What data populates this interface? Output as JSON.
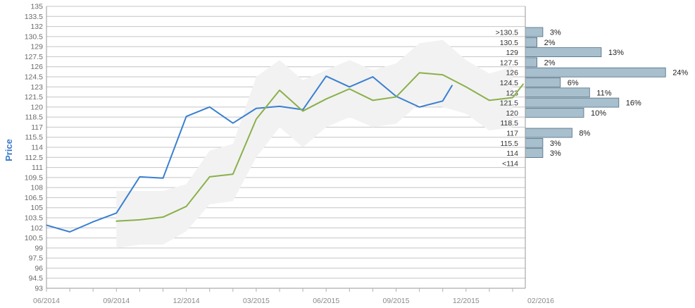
{
  "chart_data": {
    "type": "line",
    "ylabel": "Price",
    "ylim": [
      93,
      135
    ],
    "y_ticks": [
      "93",
      "94.5",
      "96",
      "97.5",
      "99",
      "100.5",
      "102",
      "103.5",
      "105",
      "106.5",
      "108",
      "109.5",
      "111",
      "112.5",
      "114",
      "115.5",
      "117",
      "118.5",
      "120",
      "121.5",
      "123",
      "124.5",
      "126",
      "127.5",
      "129",
      "130.5",
      "132",
      "133.5",
      "135"
    ],
    "x_ticks": [
      "06/2014",
      "09/2014",
      "12/2014",
      "03/2015",
      "06/2015",
      "09/2015",
      "12/2015",
      "02/2016"
    ],
    "series": [
      {
        "color": "#3a7fd0",
        "points": [
          [
            0,
            102.4
          ],
          [
            1,
            101.4
          ],
          [
            2,
            102.9
          ],
          [
            3,
            104.2
          ],
          [
            4,
            109.6
          ],
          [
            5,
            109.4
          ],
          [
            6,
            118.6
          ],
          [
            7,
            120.0
          ],
          [
            8,
            117.6
          ],
          [
            9,
            119.8
          ],
          [
            10,
            120.1
          ],
          [
            11,
            119.6
          ],
          [
            12,
            124.6
          ],
          [
            13,
            123.0
          ],
          [
            14,
            124.5
          ],
          [
            15,
            121.6
          ],
          [
            16,
            120.0
          ],
          [
            17,
            120.9
          ],
          [
            17.4,
            123.2
          ]
        ]
      },
      {
        "color": "#8ab04a",
        "points": [
          [
            3,
            103.0
          ],
          [
            4,
            103.2
          ],
          [
            5,
            103.6
          ],
          [
            6,
            105.2
          ],
          [
            7,
            109.6
          ],
          [
            8,
            110.0
          ],
          [
            9,
            118.2
          ],
          [
            10,
            122.5
          ],
          [
            11,
            119.4
          ],
          [
            12,
            121.2
          ],
          [
            13,
            122.7
          ],
          [
            14,
            121.0
          ],
          [
            15,
            121.5
          ],
          [
            16,
            125.1
          ],
          [
            17,
            124.8
          ],
          [
            18,
            123.0
          ],
          [
            19,
            121.0
          ],
          [
            20,
            121.4
          ],
          [
            20.45,
            123.4
          ]
        ]
      }
    ],
    "band": {
      "color": "#f2f2f2",
      "upper": [
        [
          3,
          107.5
        ],
        [
          4,
          107.5
        ],
        [
          5,
          107.5
        ],
        [
          6,
          108.5
        ],
        [
          7,
          113.5
        ],
        [
          8,
          114.5
        ],
        [
          9,
          124.5
        ],
        [
          10,
          127.0
        ],
        [
          11,
          124.0
        ],
        [
          12,
          125.5
        ],
        [
          13,
          127.0
        ],
        [
          14,
          125.5
        ],
        [
          15,
          126.5
        ],
        [
          16,
          129.5
        ],
        [
          17,
          130.0
        ],
        [
          18,
          127.0
        ],
        [
          19,
          125.0
        ],
        [
          20,
          126.0
        ]
      ],
      "lower": [
        [
          3,
          99.0
        ],
        [
          4,
          99.5
        ],
        [
          5,
          99.5
        ],
        [
          6,
          101.5
        ],
        [
          7,
          105.5
        ],
        [
          8,
          106.0
        ],
        [
          9,
          112.5
        ],
        [
          10,
          117.0
        ],
        [
          11,
          114.0
        ],
        [
          12,
          117.0
        ],
        [
          13,
          118.5
        ],
        [
          14,
          117.0
        ],
        [
          15,
          117.5
        ],
        [
          16,
          120.5
        ],
        [
          17,
          120.0
        ],
        [
          18,
          119.0
        ],
        [
          19,
          116.5
        ],
        [
          20,
          117.0
        ]
      ]
    },
    "histogram": {
      "color": "#a8bfcd",
      "bins": [
        {
          "label": ">130.5",
          "value": 3,
          "pct": "3%"
        },
        {
          "label": "130.5",
          "value": 2,
          "pct": "2%"
        },
        {
          "label": "129",
          "value": 13,
          "pct": "13%"
        },
        {
          "label": "127.5",
          "value": 2,
          "pct": "2%"
        },
        {
          "label": "126",
          "value": 24,
          "pct": "24%"
        },
        {
          "label": "124.5",
          "value": 6,
          "pct": "6%"
        },
        {
          "label": "123",
          "value": 11,
          "pct": "11%"
        },
        {
          "label": "121.5",
          "value": 16,
          "pct": "16%"
        },
        {
          "label": "120",
          "value": 10,
          "pct": "10%"
        },
        {
          "label": "118.5",
          "value": 0,
          "pct": ""
        },
        {
          "label": "117",
          "value": 8,
          "pct": "8%"
        },
        {
          "label": "115.5",
          "value": 3,
          "pct": "3%"
        },
        {
          "label": "114",
          "value": 3,
          "pct": "3%"
        },
        {
          "label": "<114",
          "value": 0,
          "pct": ""
        }
      ]
    }
  }
}
